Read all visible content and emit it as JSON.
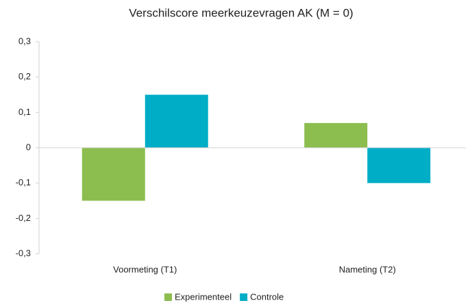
{
  "chart_data": {
    "type": "bar",
    "title": "Verschilscore meerkeuzevragen AK (M = 0)",
    "categories": [
      "Voormeting (T1)",
      "Nameting (T2)"
    ],
    "series": [
      {
        "name": "Experimenteel",
        "color": "#8cbd4f",
        "values": [
          -0.15,
          0.07
        ]
      },
      {
        "name": "Controle",
        "color": "#00adc6",
        "values": [
          0.15,
          -0.1
        ]
      }
    ],
    "ylim": [
      -0.3,
      0.3
    ],
    "yticks": [
      {
        "value": -0.3,
        "label": "-0,3"
      },
      {
        "value": -0.2,
        "label": "-0,2"
      },
      {
        "value": -0.1,
        "label": "-0,1"
      },
      0,
      {
        "value": 0.1,
        "label": "0,1"
      },
      {
        "value": 0.2,
        "label": "0,2"
      },
      {
        "value": 0.3,
        "label": "0,3"
      }
    ],
    "legend": "bottom"
  }
}
